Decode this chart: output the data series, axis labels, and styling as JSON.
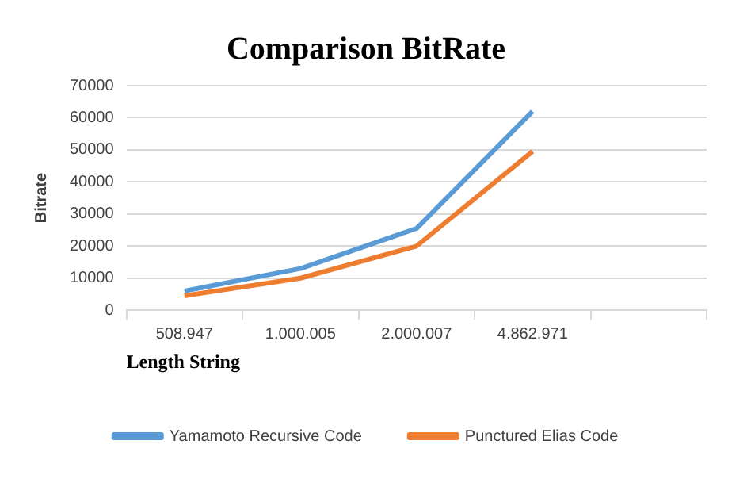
{
  "chart_data": {
    "type": "line",
    "title": "Comparison BitRate",
    "xlabel": "Length String",
    "ylabel": "Bitrate",
    "categories": [
      "508.947",
      "1.000.005",
      "2.000.007",
      "4.862.971",
      null
    ],
    "series": [
      {
        "name": "Yamamoto Recursive Code",
        "color": "#5b9bd5",
        "values": [
          6000,
          13000,
          25500,
          62000,
          null
        ]
      },
      {
        "name": "Punctured Elias Code",
        "color": "#ed7d31",
        "values": [
          4500,
          10000,
          20000,
          49500,
          null
        ]
      }
    ],
    "ylim": [
      0,
      70000
    ],
    "yticks": [
      0,
      10000,
      20000,
      30000,
      40000,
      50000,
      60000,
      70000
    ],
    "grid": "y",
    "legend": "bottom",
    "marker": "none",
    "line_style": "solid"
  }
}
